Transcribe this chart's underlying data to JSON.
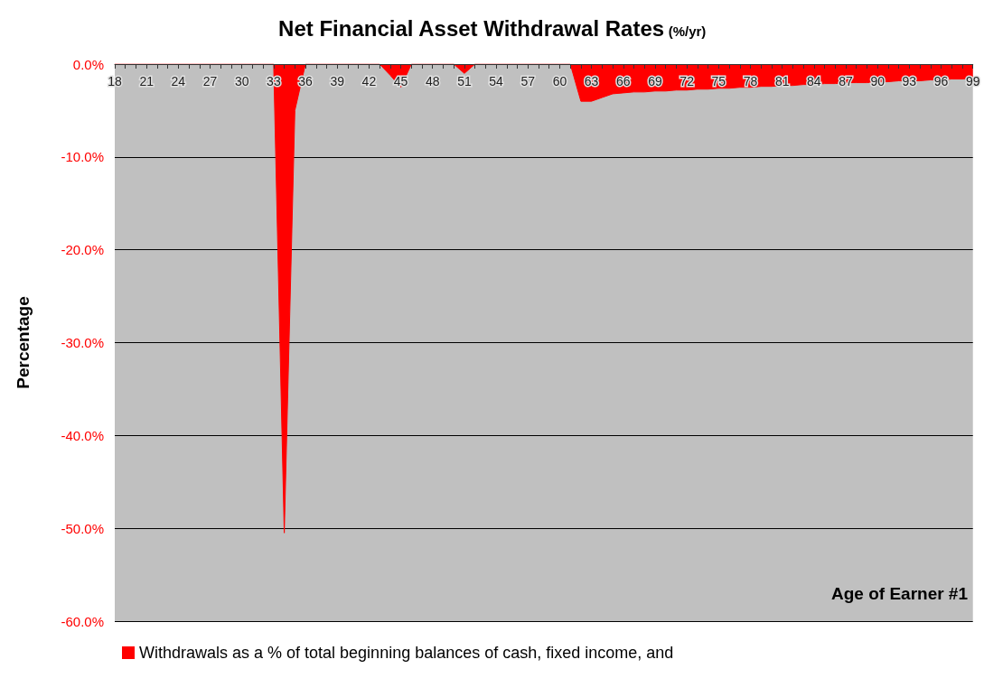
{
  "chart_data": {
    "type": "area",
    "title": "Net Financial Asset Withdrawal Rates (%/yr)",
    "xlabel": "Age of Earner #1",
    "ylabel": "Percentage",
    "categories": [
      "18",
      null,
      null,
      "21",
      null,
      null,
      "24",
      null,
      null,
      "27",
      null,
      null,
      "30",
      null,
      null,
      "33",
      null,
      null,
      "36",
      null,
      null,
      "39",
      null,
      null,
      "42",
      null,
      null,
      "45",
      null,
      null,
      "48",
      null,
      null,
      "51",
      null,
      null,
      "54",
      null,
      null,
      "57",
      null,
      null,
      "60",
      null,
      null,
      "63",
      null,
      null,
      "66",
      null,
      null,
      "69",
      null,
      null,
      "72",
      null,
      null,
      "75",
      null,
      null,
      "78",
      null,
      null,
      "81",
      null,
      null,
      "84",
      null,
      null,
      "87",
      null,
      null,
      "90",
      null,
      null,
      "93",
      null,
      null,
      "96",
      null,
      null,
      "99"
    ],
    "series": [
      {
        "name": "Withdrawals as a % of total beginning balances of cash, fixed income, and",
        "color": "#ff0000",
        "values": [
          0,
          0,
          0,
          0,
          0,
          0,
          0,
          0,
          0,
          0,
          0,
          0,
          0,
          0,
          0,
          0,
          -50.5,
          -5,
          0,
          0,
          0,
          0,
          0,
          0,
          0,
          0,
          -1.2,
          -2.5,
          0,
          0,
          0,
          0,
          0,
          -1.0,
          0,
          0,
          0,
          0,
          0,
          0,
          0,
          0,
          0,
          0,
          -4.0,
          -4.0,
          -3.6,
          -3.2,
          -3.1,
          -3.0,
          -3.0,
          -2.9,
          -2.9,
          -2.8,
          -2.8,
          -2.7,
          -2.7,
          -2.6,
          -2.6,
          -2.5,
          -2.5,
          -2.4,
          -2.4,
          -2.3,
          -2.3,
          -2.2,
          -2.2,
          -2.1,
          -2.1,
          -2.0,
          -2.0,
          -2.0,
          -1.9,
          -1.9,
          -1.8,
          -1.8,
          -1.8,
          -1.7,
          -1.7,
          -1.6,
          -1.6,
          -1.5
        ]
      }
    ],
    "ylim": [
      -60,
      0
    ],
    "yticks": [
      {
        "value": -60,
        "label": "-60.0%"
      },
      {
        "value": -50,
        "label": "-50.0%"
      },
      {
        "value": -40,
        "label": "-40.0%"
      },
      {
        "value": -30,
        "label": "-30.0%"
      },
      {
        "value": -20,
        "label": "-20.0%"
      },
      {
        "value": -10,
        "label": "-10.0%"
      },
      {
        "value": 0,
        "label": "0.0%"
      }
    ],
    "grid": "y",
    "legend": "bottom",
    "marker": "none"
  }
}
